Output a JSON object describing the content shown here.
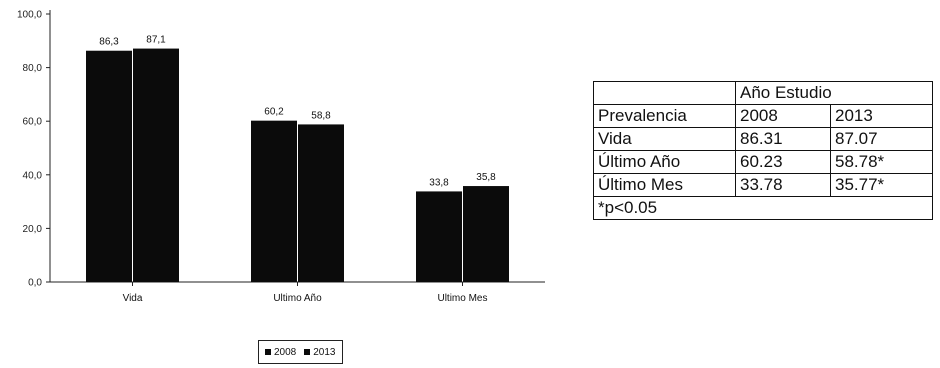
{
  "chart_data": {
    "type": "bar",
    "categories": [
      "Vida",
      "Ultimo Año",
      "Ultimo Mes"
    ],
    "series": [
      {
        "name": "2008",
        "values": [
          86.3,
          60.2,
          33.8
        ]
      },
      {
        "name": "2013",
        "values": [
          87.1,
          58.8,
          35.8
        ]
      }
    ],
    "data_labels": [
      [
        "86,3",
        "60,2",
        "33,8"
      ],
      [
        "87,1",
        "58,8",
        "35,8"
      ]
    ],
    "ylim": [
      0,
      100
    ],
    "yticks": [
      "0,0",
      "20,0",
      "40,0",
      "60,0",
      "80,0",
      "100,0"
    ],
    "grid": false,
    "legend_position": "bottom",
    "bar_color": "#0b0b0b"
  },
  "table": {
    "header_group": "Año Estudio",
    "row_header": "Prevalencia",
    "years": [
      "2008",
      "2013"
    ],
    "rows": [
      {
        "label": "Vida",
        "v2008": "86.31",
        "v2013": "87.07"
      },
      {
        "label": "Último Año",
        "v2008": "60.23",
        "v2013": "58.78*"
      },
      {
        "label": "Último Mes",
        "v2008": "33.78",
        "v2013": "35.77*"
      }
    ],
    "footnote": "*p<0.05"
  }
}
